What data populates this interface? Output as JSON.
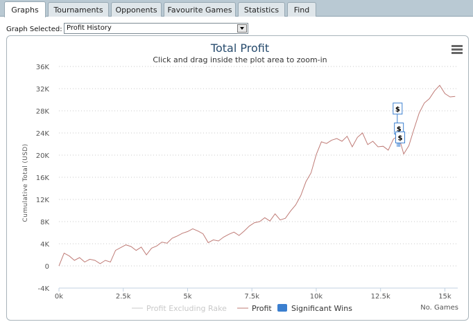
{
  "tabs": [
    {
      "label": "Graphs",
      "active": true
    },
    {
      "label": "Tournaments",
      "active": false
    },
    {
      "label": "Opponents",
      "active": false
    },
    {
      "label": "Favourite Games",
      "active": false
    },
    {
      "label": "Statistics",
      "active": false
    },
    {
      "label": "Find",
      "active": false
    }
  ],
  "graph_select": {
    "label": "Graph Selected:",
    "value": "Profit History"
  },
  "menu_icon": "hamburger-menu-icon",
  "colors": {
    "profit": "#bf7b76",
    "excluding_rake": "#c9c9c9",
    "wins": "#3b7fcf",
    "title": "#274b6d"
  },
  "chart_data": {
    "type": "line",
    "title": "Total Profit",
    "subtitle": "Click and drag inside the plot area to zoom-in",
    "ylabel": "Cumulative Total (USD)",
    "xlabel": "No. Games",
    "xlim": [
      0,
      15500
    ],
    "ylim": [
      -4000,
      36000
    ],
    "y_ticks": [
      "-4K",
      "0",
      "4K",
      "8K",
      "12K",
      "16K",
      "20K",
      "24K",
      "28K",
      "32K",
      "36K"
    ],
    "x_ticks": [
      "0k",
      "2.5k",
      "5k",
      "7.5k",
      "10k",
      "12.5k",
      "15k"
    ],
    "grid": "horizontal dotted",
    "legend_position": "bottom",
    "series": [
      {
        "name": "Profit Excluding Rake",
        "visible": false,
        "values": []
      },
      {
        "name": "Profit",
        "visible": true,
        "x": [
          0,
          200,
          400,
          600,
          800,
          1000,
          1200,
          1400,
          1600,
          1800,
          2000,
          2200,
          2400,
          2600,
          2800,
          3000,
          3200,
          3400,
          3600,
          3800,
          4000,
          4200,
          4400,
          4600,
          4800,
          5000,
          5200,
          5400,
          5600,
          5800,
          6000,
          6200,
          6400,
          6600,
          6800,
          7000,
          7200,
          7400,
          7600,
          7800,
          8000,
          8200,
          8400,
          8600,
          8800,
          9000,
          9200,
          9400,
          9600,
          9800,
          10000,
          10200,
          10400,
          10600,
          10800,
          11000,
          11200,
          11400,
          11600,
          11800,
          12000,
          12200,
          12400,
          12600,
          12800,
          13000,
          13200,
          13400,
          13600,
          13800,
          14000,
          14200,
          14400,
          14600,
          14800,
          15000,
          15200,
          15400
        ],
        "y": [
          0,
          2300,
          1800,
          1000,
          1500,
          700,
          1200,
          1000,
          400,
          1000,
          700,
          2800,
          3300,
          3800,
          3500,
          2800,
          3400,
          2000,
          3200,
          3600,
          4300,
          4100,
          5000,
          5400,
          5900,
          6200,
          6700,
          6300,
          5800,
          4200,
          4700,
          4500,
          5200,
          5700,
          6100,
          5500,
          6300,
          7200,
          7800,
          8000,
          8700,
          8100,
          9400,
          8300,
          8600,
          9900,
          11000,
          12700,
          15200,
          16800,
          20100,
          22400,
          22100,
          22700,
          23000,
          22500,
          23400,
          21500,
          23200,
          24000,
          21900,
          22500,
          21500,
          21600,
          20900,
          22900,
          23500,
          20200,
          21700,
          24700,
          27600,
          29400,
          30200,
          31600,
          32600,
          31100,
          30500,
          30600
        ]
      },
      {
        "name": "Significant Wins",
        "type": "flags",
        "x": [
          13150,
          13200,
          13250
        ],
        "labels": [
          "$",
          "$",
          "$"
        ]
      }
    ]
  }
}
